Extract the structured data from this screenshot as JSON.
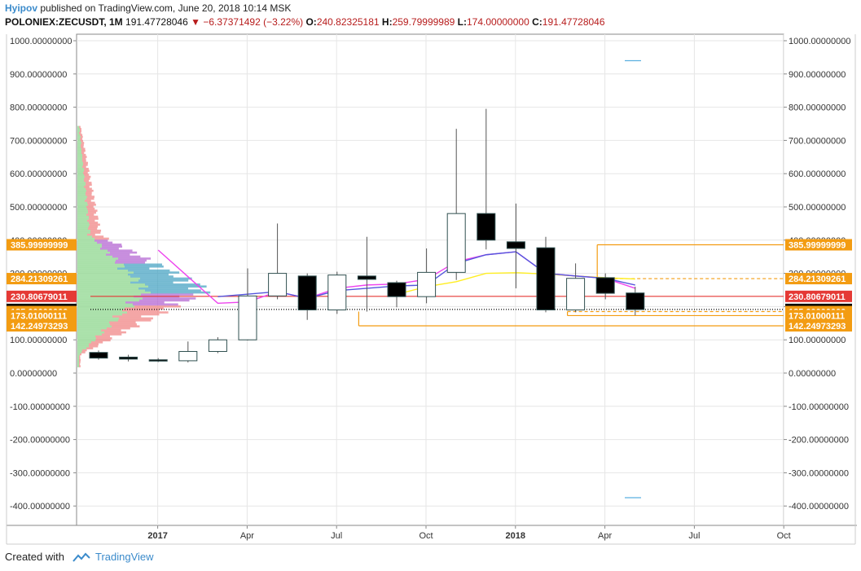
{
  "header": {
    "author": "Hyipov",
    "published_text": "published on TradingView.com, June 20, 2018 10:14 MSK",
    "symbol": "POLONIEX:ZECUSDT, 1M",
    "last": "191.47728046",
    "change": "−6.37371492 (−3.22%)",
    "o_label": "O:",
    "o_value": "240.82325181",
    "h_label": "H:",
    "h_value": "259.79999989",
    "l_label": "L:",
    "l_value": "174.00000000",
    "c_label": "C:",
    "c_value": "191.47728046"
  },
  "footer": {
    "created_with": "Created with",
    "brand": "TradingView"
  },
  "colors": {
    "grid": "#e6e6e6",
    "up_body": "#ffffff",
    "down_body": "#000000",
    "wick": "#555555",
    "candle_border": "#2f4f4f",
    "blue_ma": "#5555dd",
    "magenta_ma": "#ee44ee",
    "yellow_ma": "#ffee22",
    "orange": "#f39c12",
    "red": "#e53935",
    "black_tag": "#000000"
  },
  "chart_data": {
    "type": "candlestick",
    "y_ticks": [
      "1000.00000000",
      "900.00000000",
      "800.00000000",
      "700.00000000",
      "600.00000000",
      "500.00000000",
      "400.00000000",
      "300.00000000",
      "200.00000000",
      "100.00000000",
      "0.00000000",
      "-100.00000000",
      "-200.00000000",
      "-300.00000000",
      "-400.00000000"
    ],
    "y_tick_values": [
      1000,
      900,
      800,
      700,
      600,
      500,
      400,
      300,
      200,
      100,
      0,
      -100,
      -200,
      -300,
      -400
    ],
    "ylim": [
      -455,
      1020
    ],
    "x_ticks": [
      {
        "label": "2017",
        "month_index": 1,
        "bold": true
      },
      {
        "label": "Apr",
        "month_index": 4,
        "bold": false
      },
      {
        "label": "Jul",
        "month_index": 7,
        "bold": false
      },
      {
        "label": "Oct",
        "month_index": 10,
        "bold": false
      },
      {
        "label": "2018",
        "month_index": 13,
        "bold": true
      },
      {
        "label": "Apr",
        "month_index": 16,
        "bold": false
      },
      {
        "label": "Jul",
        "month_index": 19,
        "bold": false
      },
      {
        "label": "Oct",
        "month_index": 22,
        "bold": false
      }
    ],
    "candles": [
      {
        "m": 0,
        "o": 62,
        "h": 68,
        "l": 40,
        "c": 45
      },
      {
        "m": 1,
        "o": 48,
        "h": 55,
        "l": 35,
        "c": 42
      },
      {
        "m": 2,
        "o": 40,
        "h": 45,
        "l": 33,
        "c": 36
      },
      {
        "m": 3,
        "o": 37,
        "h": 95,
        "l": 32,
        "c": 65
      },
      {
        "m": 4,
        "o": 65,
        "h": 108,
        "l": 60,
        "c": 100
      },
      {
        "m": 5,
        "o": 100,
        "h": 315,
        "l": 98,
        "c": 232
      },
      {
        "m": 6,
        "o": 232,
        "h": 450,
        "l": 222,
        "c": 300
      },
      {
        "m": 7,
        "o": 292,
        "h": 300,
        "l": 160,
        "c": 190
      },
      {
        "m": 8,
        "o": 190,
        "h": 305,
        "l": 178,
        "c": 295
      },
      {
        "m": 9,
        "o": 292,
        "h": 410,
        "l": 185,
        "c": 282
      },
      {
        "m": 10,
        "o": 272,
        "h": 278,
        "l": 198,
        "c": 230
      },
      {
        "m": 11,
        "o": 230,
        "h": 375,
        "l": 210,
        "c": 303
      },
      {
        "m": 12,
        "o": 303,
        "h": 735,
        "l": 280,
        "c": 480
      },
      {
        "m": 13,
        "o": 480,
        "h": 795,
        "l": 372,
        "c": 400
      },
      {
        "m": 14,
        "o": 395,
        "h": 510,
        "l": 255,
        "c": 375
      },
      {
        "m": 15,
        "o": 377,
        "h": 410,
        "l": 183,
        "c": 190
      },
      {
        "m": 16,
        "o": 190,
        "h": 330,
        "l": 183,
        "c": 285
      },
      {
        "m": 17,
        "o": 287,
        "h": 300,
        "l": 222,
        "c": 240
      },
      {
        "m": 18,
        "o": 241,
        "h": 260,
        "l": 174,
        "c": 191
      }
    ],
    "blue_ma": [
      [
        4,
        230
      ],
      [
        6,
        245
      ],
      [
        7,
        225
      ],
      [
        8,
        248
      ],
      [
        10,
        262
      ],
      [
        11,
        265
      ],
      [
        12,
        330
      ],
      [
        13,
        356
      ],
      [
        14,
        365
      ],
      [
        15,
        300
      ],
      [
        16,
        292
      ],
      [
        17,
        285
      ],
      [
        18,
        265
      ]
    ],
    "magenta_ma": [
      [
        2,
        370
      ],
      [
        3,
        290
      ],
      [
        4,
        210
      ],
      [
        5,
        214
      ],
      [
        6,
        245
      ],
      [
        7,
        225
      ],
      [
        8,
        255
      ],
      [
        9,
        265
      ],
      [
        10,
        268
      ],
      [
        11,
        282
      ],
      [
        12,
        335
      ],
      [
        13,
        356
      ],
      [
        14,
        365
      ],
      [
        15,
        300
      ],
      [
        16,
        292
      ],
      [
        17,
        285
      ],
      [
        18,
        255
      ]
    ],
    "yellow_ma": [
      [
        10,
        237
      ],
      [
        11,
        260
      ],
      [
        12,
        275
      ],
      [
        13,
        300
      ],
      [
        14,
        302
      ],
      [
        15,
        298
      ],
      [
        16,
        292
      ],
      [
        17,
        287
      ],
      [
        18,
        283
      ]
    ],
    "horizontal_levels": [
      {
        "label": "385.99999999",
        "value": 386,
        "color": "#f39c12",
        "text": "#ffffff",
        "start_m": 17.0,
        "style": "solid",
        "left_tag": true,
        "right_tag": true
      },
      {
        "label": "284.21309261",
        "value": 284.2,
        "color": "#f39c12",
        "text": "#ffffff",
        "start_m": 17.0,
        "style": "dashed",
        "left_tag": true,
        "right_tag": true
      },
      {
        "label": "230.80679011",
        "value": 230.8,
        "color": "#e53935",
        "text": "#ffffff",
        "start_m": 0.0,
        "style": "solid",
        "left_tag": true,
        "right_tag": true
      },
      {
        "label": "191.47728046",
        "value": 191.5,
        "color": "#000000",
        "text": "#ffffff",
        "start_m": 0.0,
        "style": "dotted",
        "left_tag": true,
        "right_tag": true
      },
      {
        "label": "185.00000000",
        "value": 185,
        "color": "#f39c12",
        "text": "#ffffff",
        "start_m": 16.0,
        "style": "dashed",
        "left_tag": true,
        "right_tag": true
      },
      {
        "label": "173.01000111",
        "value": 173,
        "color": "#f39c12",
        "text": "#ffffff",
        "start_m": 16.0,
        "style": "solid",
        "left_tag": true,
        "right_tag": true
      },
      {
        "label": "142.24973293",
        "value": 142.2,
        "color": "#f39c12",
        "text": "#ffffff",
        "start_m": 9.0,
        "style": "solid",
        "left_tag": true,
        "right_tag": true
      }
    ],
    "measure_ticks": [
      940,
      -375
    ]
  }
}
